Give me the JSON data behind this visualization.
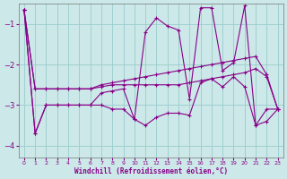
{
  "background_color": "#cce8e8",
  "grid_color": "#99cccc",
  "line_color": "#880088",
  "xlabel": "Windchill (Refroidissement éolien,°C)",
  "xlim": [
    -0.5,
    23.5
  ],
  "ylim": [
    -4.3,
    -0.5
  ],
  "yticks": [
    -4,
    -3,
    -2,
    -1
  ],
  "xticks": [
    0,
    1,
    2,
    3,
    4,
    5,
    6,
    7,
    8,
    9,
    10,
    11,
    12,
    13,
    14,
    15,
    16,
    17,
    18,
    19,
    20,
    21,
    22,
    23
  ],
  "series_volatile": [
    [
      0,
      -0.65
    ],
    [
      1,
      -3.7
    ],
    [
      2,
      -3.0
    ],
    [
      3,
      -3.0
    ],
    [
      4,
      -3.0
    ],
    [
      5,
      -3.0
    ],
    [
      6,
      -3.0
    ],
    [
      7,
      -2.7
    ],
    [
      8,
      -2.65
    ],
    [
      9,
      -2.6
    ],
    [
      10,
      -3.35
    ],
    [
      11,
      -1.2
    ],
    [
      12,
      -0.85
    ],
    [
      13,
      -1.05
    ],
    [
      14,
      -1.15
    ],
    [
      15,
      -2.85
    ],
    [
      16,
      -0.6
    ],
    [
      17,
      -0.6
    ],
    [
      18,
      -2.15
    ],
    [
      19,
      -1.95
    ],
    [
      20,
      -0.55
    ],
    [
      21,
      -3.5
    ],
    [
      22,
      -3.1
    ],
    [
      23,
      -3.1
    ]
  ],
  "series_trend_upper": [
    [
      0,
      -0.65
    ],
    [
      1,
      -2.6
    ],
    [
      2,
      -2.6
    ],
    [
      3,
      -2.6
    ],
    [
      4,
      -2.6
    ],
    [
      5,
      -2.6
    ],
    [
      6,
      -2.6
    ],
    [
      7,
      -2.5
    ],
    [
      8,
      -2.45
    ],
    [
      9,
      -2.4
    ],
    [
      10,
      -2.35
    ],
    [
      11,
      -2.3
    ],
    [
      12,
      -2.25
    ],
    [
      13,
      -2.2
    ],
    [
      14,
      -2.15
    ],
    [
      15,
      -2.1
    ],
    [
      16,
      -2.05
    ],
    [
      17,
      -2.0
    ],
    [
      18,
      -1.95
    ],
    [
      19,
      -1.9
    ],
    [
      20,
      -1.85
    ],
    [
      21,
      -1.8
    ],
    [
      22,
      -2.25
    ],
    [
      23,
      -3.1
    ]
  ],
  "series_trend_lower": [
    [
      0,
      -0.65
    ],
    [
      1,
      -2.6
    ],
    [
      2,
      -2.6
    ],
    [
      3,
      -2.6
    ],
    [
      4,
      -2.6
    ],
    [
      5,
      -2.6
    ],
    [
      6,
      -2.6
    ],
    [
      7,
      -2.55
    ],
    [
      8,
      -2.5
    ],
    [
      9,
      -2.5
    ],
    [
      10,
      -2.5
    ],
    [
      11,
      -2.5
    ],
    [
      12,
      -2.5
    ],
    [
      13,
      -2.5
    ],
    [
      14,
      -2.5
    ],
    [
      15,
      -2.45
    ],
    [
      16,
      -2.4
    ],
    [
      17,
      -2.35
    ],
    [
      18,
      -2.3
    ],
    [
      19,
      -2.25
    ],
    [
      20,
      -2.2
    ],
    [
      21,
      -2.1
    ],
    [
      22,
      -2.3
    ],
    [
      23,
      -3.1
    ]
  ],
  "series_bottom": [
    [
      0,
      -0.65
    ],
    [
      1,
      -3.7
    ],
    [
      2,
      -3.0
    ],
    [
      3,
      -3.0
    ],
    [
      4,
      -3.0
    ],
    [
      5,
      -3.0
    ],
    [
      6,
      -3.0
    ],
    [
      7,
      -3.0
    ],
    [
      8,
      -3.1
    ],
    [
      9,
      -3.1
    ],
    [
      10,
      -3.35
    ],
    [
      11,
      -3.5
    ],
    [
      12,
      -3.3
    ],
    [
      13,
      -3.2
    ],
    [
      14,
      -3.2
    ],
    [
      15,
      -3.25
    ],
    [
      16,
      -2.45
    ],
    [
      17,
      -2.35
    ],
    [
      18,
      -2.55
    ],
    [
      19,
      -2.3
    ],
    [
      20,
      -2.55
    ],
    [
      21,
      -3.5
    ],
    [
      22,
      -3.4
    ],
    [
      23,
      -3.1
    ]
  ]
}
